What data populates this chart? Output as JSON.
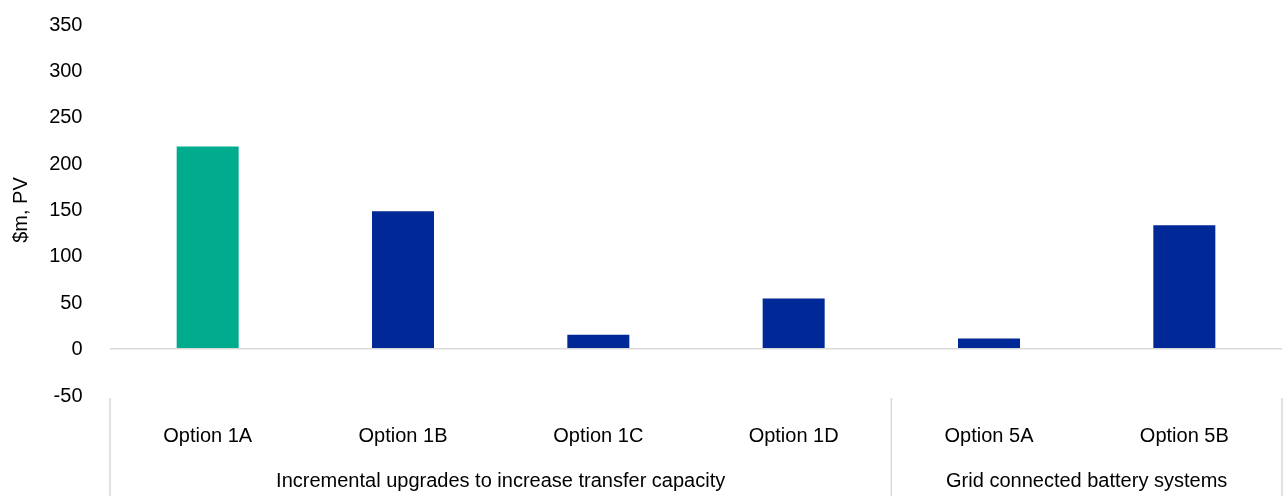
{
  "chart_data": {
    "type": "bar",
    "ylabel": "$m, PV",
    "categories": [
      "Option 1A",
      "Option 1B",
      "Option 1C",
      "Option 1D",
      "Option 5A",
      "Option 5B"
    ],
    "values": [
      218,
      148,
      15,
      54,
      11,
      133
    ],
    "colors": [
      "#00ab8e",
      "#002896",
      "#002896",
      "#002896",
      "#002896",
      "#002896"
    ],
    "ylim": [
      -50,
      350
    ],
    "yticks": [
      -50,
      0,
      50,
      100,
      150,
      200,
      250,
      300,
      350
    ],
    "annotations": [
      "Incremental upgrades to increase transfer capacity",
      "Grid connected battery systems"
    ]
  }
}
